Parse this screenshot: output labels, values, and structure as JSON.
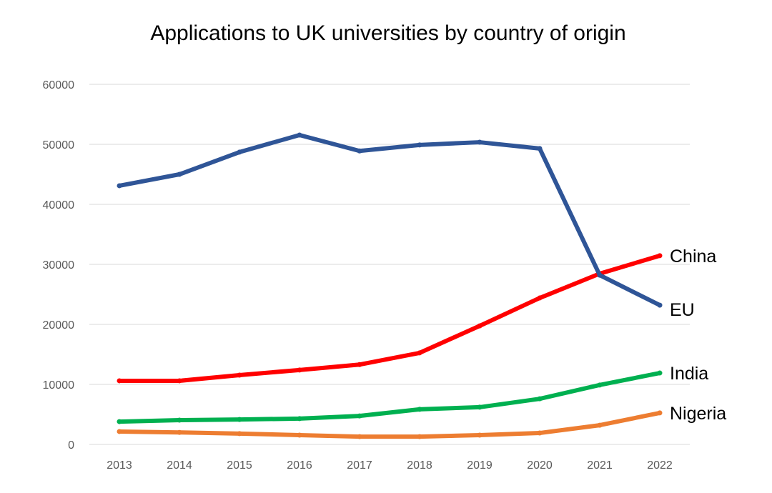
{
  "chart_data": {
    "type": "line",
    "title": "Applications to UK universities by country of origin",
    "xlabel": "",
    "ylabel": "",
    "x": [
      2013,
      2014,
      2015,
      2016,
      2017,
      2018,
      2019,
      2020,
      2021,
      2022
    ],
    "x_tick_labels": [
      "2013",
      "2014",
      "2015",
      "2016",
      "2017",
      "2018",
      "2019",
      "2020",
      "2021",
      "2022"
    ],
    "ylim": [
      0,
      60000
    ],
    "y_ticks": [
      0,
      10000,
      20000,
      30000,
      40000,
      50000,
      60000
    ],
    "y_tick_labels": [
      "0",
      "10000",
      "20000",
      "30000",
      "40000",
      "50000",
      "60000"
    ],
    "grid": "horizontal",
    "legend": "direct labels at line ends",
    "series": [
      {
        "name": "EU",
        "color": "#2f5597",
        "values": [
          43100,
          45000,
          48700,
          51550,
          48900,
          49900,
          50350,
          49300,
          28200,
          23200
        ]
      },
      {
        "name": "China",
        "color": "#ff0000",
        "values": [
          10600,
          10600,
          11550,
          12400,
          13300,
          15250,
          19750,
          24400,
          28450,
          31450
        ]
      },
      {
        "name": "India",
        "color": "#00b050",
        "values": [
          3800,
          4050,
          4150,
          4300,
          4750,
          5850,
          6200,
          7600,
          9900,
          11900
        ]
      },
      {
        "name": "Nigeria",
        "color": "#ed7d31",
        "values": [
          2150,
          2000,
          1800,
          1550,
          1300,
          1300,
          1550,
          1900,
          3200,
          5250
        ]
      }
    ]
  }
}
